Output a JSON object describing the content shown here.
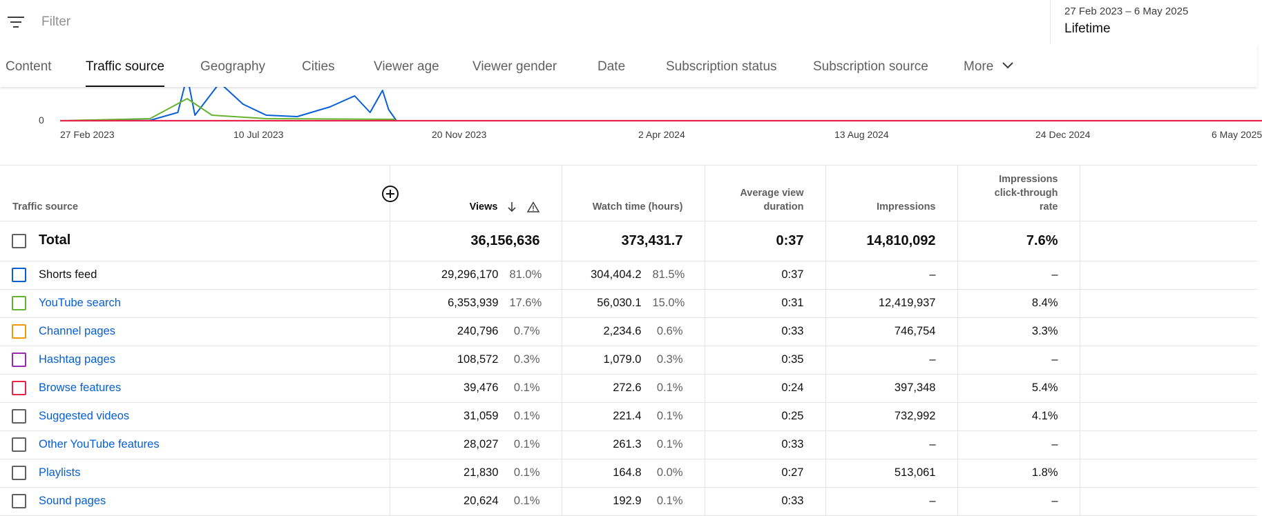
{
  "filter": {
    "placeholder": "Filter",
    "icon": "filter-icon"
  },
  "date_range": {
    "range": "27 Feb 2023 – 6 May 2025",
    "period": "Lifetime"
  },
  "tabs": [
    {
      "label": "Content"
    },
    {
      "label": "Traffic source"
    },
    {
      "label": "Geography"
    },
    {
      "label": "Cities"
    },
    {
      "label": "Viewer age"
    },
    {
      "label": "Viewer gender"
    },
    {
      "label": "Date"
    },
    {
      "label": "Subscription status"
    },
    {
      "label": "Subscription source"
    },
    {
      "label": "More"
    }
  ],
  "active_tab": "Traffic source",
  "chart": {
    "ytick": "0",
    "xticks": [
      "27 Feb 2023",
      "10 Jul 2023",
      "20 Nov 2023",
      "2 Apr 2024",
      "13 Aug 2024",
      "24 Dec 2024",
      "6 May 2025"
    ]
  },
  "chart_data": {
    "type": "line",
    "x_range": [
      "27 Feb 2023",
      "6 May 2025"
    ],
    "ylim": [
      0,
      null
    ],
    "series": [
      {
        "name": "Shorts feed",
        "color": "#065fd4",
        "points": [
          [
            "27 Feb 2023",
            0
          ],
          [
            "26 Apr 2023",
            0.5
          ],
          [
            "14 May 2023",
            12
          ],
          [
            "20 May 2023",
            65
          ],
          [
            "25 May 2023",
            8
          ],
          [
            "10 Jun 2023",
            55
          ],
          [
            "25 Jun 2023",
            24
          ],
          [
            "10 Jul 2023",
            8
          ],
          [
            "30 Jul 2023",
            6
          ],
          [
            "20 Aug 2023",
            20
          ],
          [
            "5 Sep 2023",
            36
          ],
          [
            "15 Sep 2023",
            12
          ],
          [
            "23 Sep 2023",
            44
          ],
          [
            "27 Sep 2023",
            16
          ],
          [
            "2 Oct 2023",
            0
          ],
          [
            "6 May 2025",
            0
          ]
        ]
      },
      {
        "name": "YouTube search",
        "color": "#65b32e",
        "points": [
          [
            "27 Feb 2023",
            0
          ],
          [
            "26 Apr 2023",
            3
          ],
          [
            "20 May 2023",
            32
          ],
          [
            "5 Jun 2023",
            8
          ],
          [
            "10 Jul 2023",
            3
          ],
          [
            "30 Sep 2023",
            2
          ],
          [
            "2 Oct 2023",
            0
          ],
          [
            "6 May 2025",
            0
          ]
        ]
      },
      {
        "name": "Browse features",
        "color": "#e8224a",
        "points": [
          [
            "27 Feb 2023",
            0
          ],
          [
            "6 May 2025",
            0
          ]
        ]
      }
    ]
  },
  "table": {
    "headers": {
      "source": "Traffic source",
      "views": "Views",
      "watch": "Watch time (hours)",
      "avg": [
        "Average view",
        "duration"
      ],
      "impressions": "Impressions",
      "ctr": [
        "Impressions",
        "click-through",
        "rate"
      ]
    },
    "total": {
      "label": "Total",
      "views": "36,156,636",
      "watch": "373,431.7",
      "avg": "0:37",
      "impressions": "14,810,092",
      "ctr": "7.6%"
    },
    "rows": [
      {
        "label": "Shorts feed",
        "link": false,
        "color": "#065fd4",
        "views": "29,296,170",
        "views_pct": "81.0%",
        "watch": "304,404.2",
        "watch_pct": "81.5%",
        "avg": "0:37",
        "impressions": "–",
        "ctr": "–"
      },
      {
        "label": "YouTube search",
        "link": true,
        "color": "#65b32e",
        "views": "6,353,939",
        "views_pct": "17.6%",
        "watch": "56,030.1",
        "watch_pct": "15.0%",
        "avg": "0:31",
        "impressions": "12,419,937",
        "ctr": "8.4%"
      },
      {
        "label": "Channel pages",
        "link": true,
        "color": "#f29900",
        "views": "240,796",
        "views_pct": "0.7%",
        "watch": "2,234.6",
        "watch_pct": "0.6%",
        "avg": "0:33",
        "impressions": "746,754",
        "ctr": "3.3%"
      },
      {
        "label": "Hashtag pages",
        "link": true,
        "color": "#9c27b0",
        "views": "108,572",
        "views_pct": "0.3%",
        "watch": "1,079.0",
        "watch_pct": "0.3%",
        "avg": "0:35",
        "impressions": "–",
        "ctr": "–"
      },
      {
        "label": "Browse features",
        "link": true,
        "color": "#e8224a",
        "views": "39,476",
        "views_pct": "0.1%",
        "watch": "272.6",
        "watch_pct": "0.1%",
        "avg": "0:24",
        "impressions": "397,348",
        "ctr": "5.4%"
      },
      {
        "label": "Suggested videos",
        "link": true,
        "color": "#606060",
        "views": "31,059",
        "views_pct": "0.1%",
        "watch": "221.4",
        "watch_pct": "0.1%",
        "avg": "0:25",
        "impressions": "732,992",
        "ctr": "4.1%"
      },
      {
        "label": "Other YouTube features",
        "link": true,
        "color": "#606060",
        "views": "28,027",
        "views_pct": "0.1%",
        "watch": "261.3",
        "watch_pct": "0.1%",
        "avg": "0:33",
        "impressions": "–",
        "ctr": "–"
      },
      {
        "label": "Playlists",
        "link": true,
        "color": "#606060",
        "views": "21,830",
        "views_pct": "0.1%",
        "watch": "164.8",
        "watch_pct": "0.0%",
        "avg": "0:27",
        "impressions": "513,061",
        "ctr": "1.8%"
      },
      {
        "label": "Sound pages",
        "link": true,
        "color": "#606060",
        "views": "20,624",
        "views_pct": "0.1%",
        "watch": "192.9",
        "watch_pct": "0.1%",
        "avg": "0:33",
        "impressions": "–",
        "ctr": "–"
      }
    ]
  }
}
